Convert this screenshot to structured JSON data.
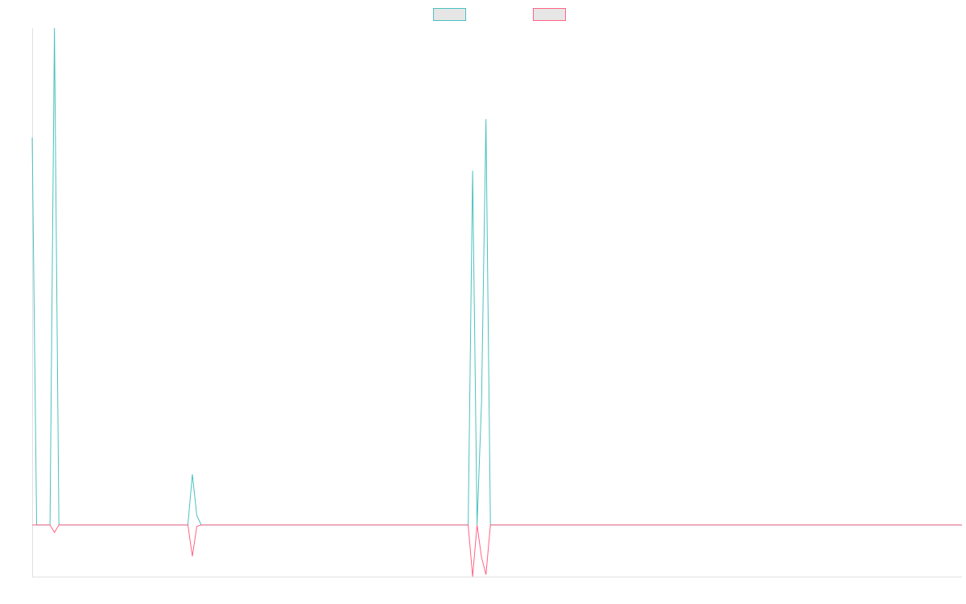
{
  "chart_data": {
    "type": "line",
    "xlim": [
      0,
      209
    ],
    "ylim": [
      -10.4,
      100
    ],
    "legend": "top",
    "series": [
      {
        "color": "#4bc0c0",
        "x": [
          0,
          1,
          4,
          5,
          6,
          35,
          36,
          37,
          38,
          98,
          99,
          100,
          101,
          102,
          103,
          209
        ],
        "values": [
          78,
          0,
          0,
          100,
          0,
          0,
          10.2,
          1.9,
          0,
          0,
          71.3,
          0,
          24.6,
          81.7,
          0,
          0
        ]
      },
      {
        "color": "#ff6384",
        "x": [
          0,
          4,
          5,
          6,
          35,
          36,
          37,
          38,
          98,
          99,
          100,
          101,
          102,
          103,
          209
        ],
        "values": [
          0,
          0,
          -1.5,
          0,
          0,
          -6.3,
          -0.3,
          0,
          0,
          -10.4,
          0,
          -6.5,
          -10,
          0,
          0
        ]
      }
    ]
  }
}
